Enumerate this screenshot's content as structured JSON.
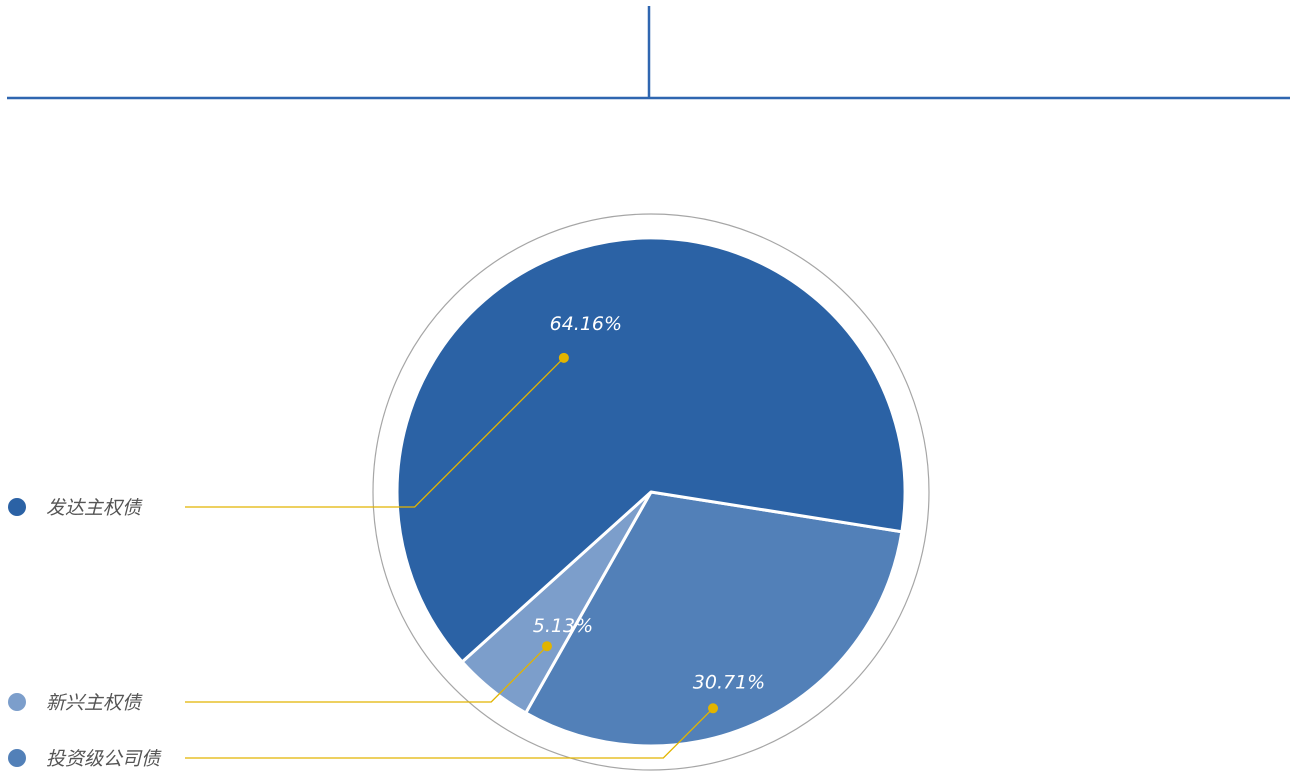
{
  "colors": {
    "rule": "#2f66b0",
    "leader": "#e2b400",
    "outer_ring": "#a6a6a6",
    "separator": "#ffffff"
  },
  "chart_data": {
    "type": "pie",
    "title": "",
    "slices": [
      {
        "name": "发达主权债",
        "value": 64.16,
        "label": "64.16%",
        "color": "#2b62a5"
      },
      {
        "name": "投资级公司债",
        "value": 30.71,
        "label": "30.71%",
        "color": "#5280b8"
      },
      {
        "name": "新兴主权债",
        "value": 5.13,
        "label": "5.13%",
        "color": "#7c9ecb"
      }
    ],
    "legend_position": "left"
  }
}
